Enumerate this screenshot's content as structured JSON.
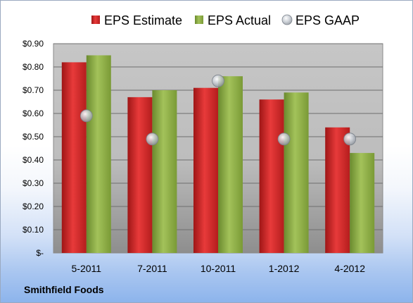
{
  "company": "Smithfield Foods",
  "chart_data": {
    "type": "bar",
    "categories": [
      "5-2011",
      "7-2011",
      "10-2011",
      "1-2012",
      "4-2012"
    ],
    "series": [
      {
        "name": "EPS Estimate",
        "type": "bar",
        "color": "#d42a2a",
        "values": [
          0.82,
          0.67,
          0.71,
          0.66,
          0.54
        ]
      },
      {
        "name": "EPS Actual",
        "type": "bar",
        "color": "#8fb04a",
        "values": [
          0.85,
          0.7,
          0.76,
          0.69,
          0.43
        ]
      },
      {
        "name": "EPS GAAP",
        "type": "scatter",
        "color": "#b8bec6",
        "values": [
          0.59,
          0.49,
          0.74,
          0.49,
          0.49
        ]
      }
    ],
    "ylim": [
      0,
      0.9
    ],
    "yticks": [
      0,
      0.1,
      0.2,
      0.3,
      0.4,
      0.5,
      0.6,
      0.7,
      0.8,
      0.9
    ],
    "ytick_labels": [
      "$-",
      "$0.10",
      "$0.20",
      "$0.30",
      "$0.40",
      "$0.50",
      "$0.60",
      "$0.70",
      "$0.80",
      "$0.90"
    ],
    "grid": true,
    "legend": "top"
  }
}
